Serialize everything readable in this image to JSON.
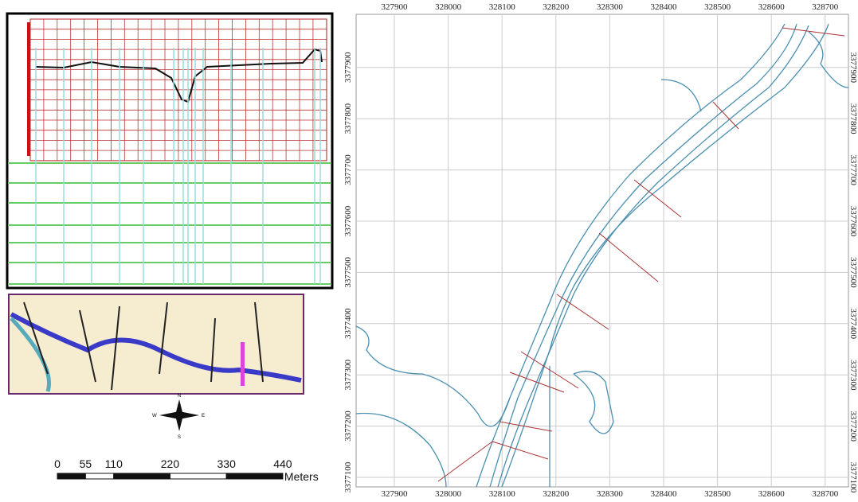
{
  "map": {
    "x_labels": [
      327900,
      328000,
      328100,
      328200,
      328300,
      328400,
      328500,
      328600,
      328700
    ],
    "y_labels": [
      3377100,
      3377200,
      3377300,
      3377400,
      3377500,
      3377600,
      3377700,
      3377800,
      3377900
    ]
  },
  "compass": {
    "n": "N",
    "s": "S",
    "e": "E",
    "w": "W"
  },
  "scale_bar": {
    "ticks": [
      0,
      55,
      110,
      220,
      330,
      440
    ],
    "unit": "Meters"
  }
}
